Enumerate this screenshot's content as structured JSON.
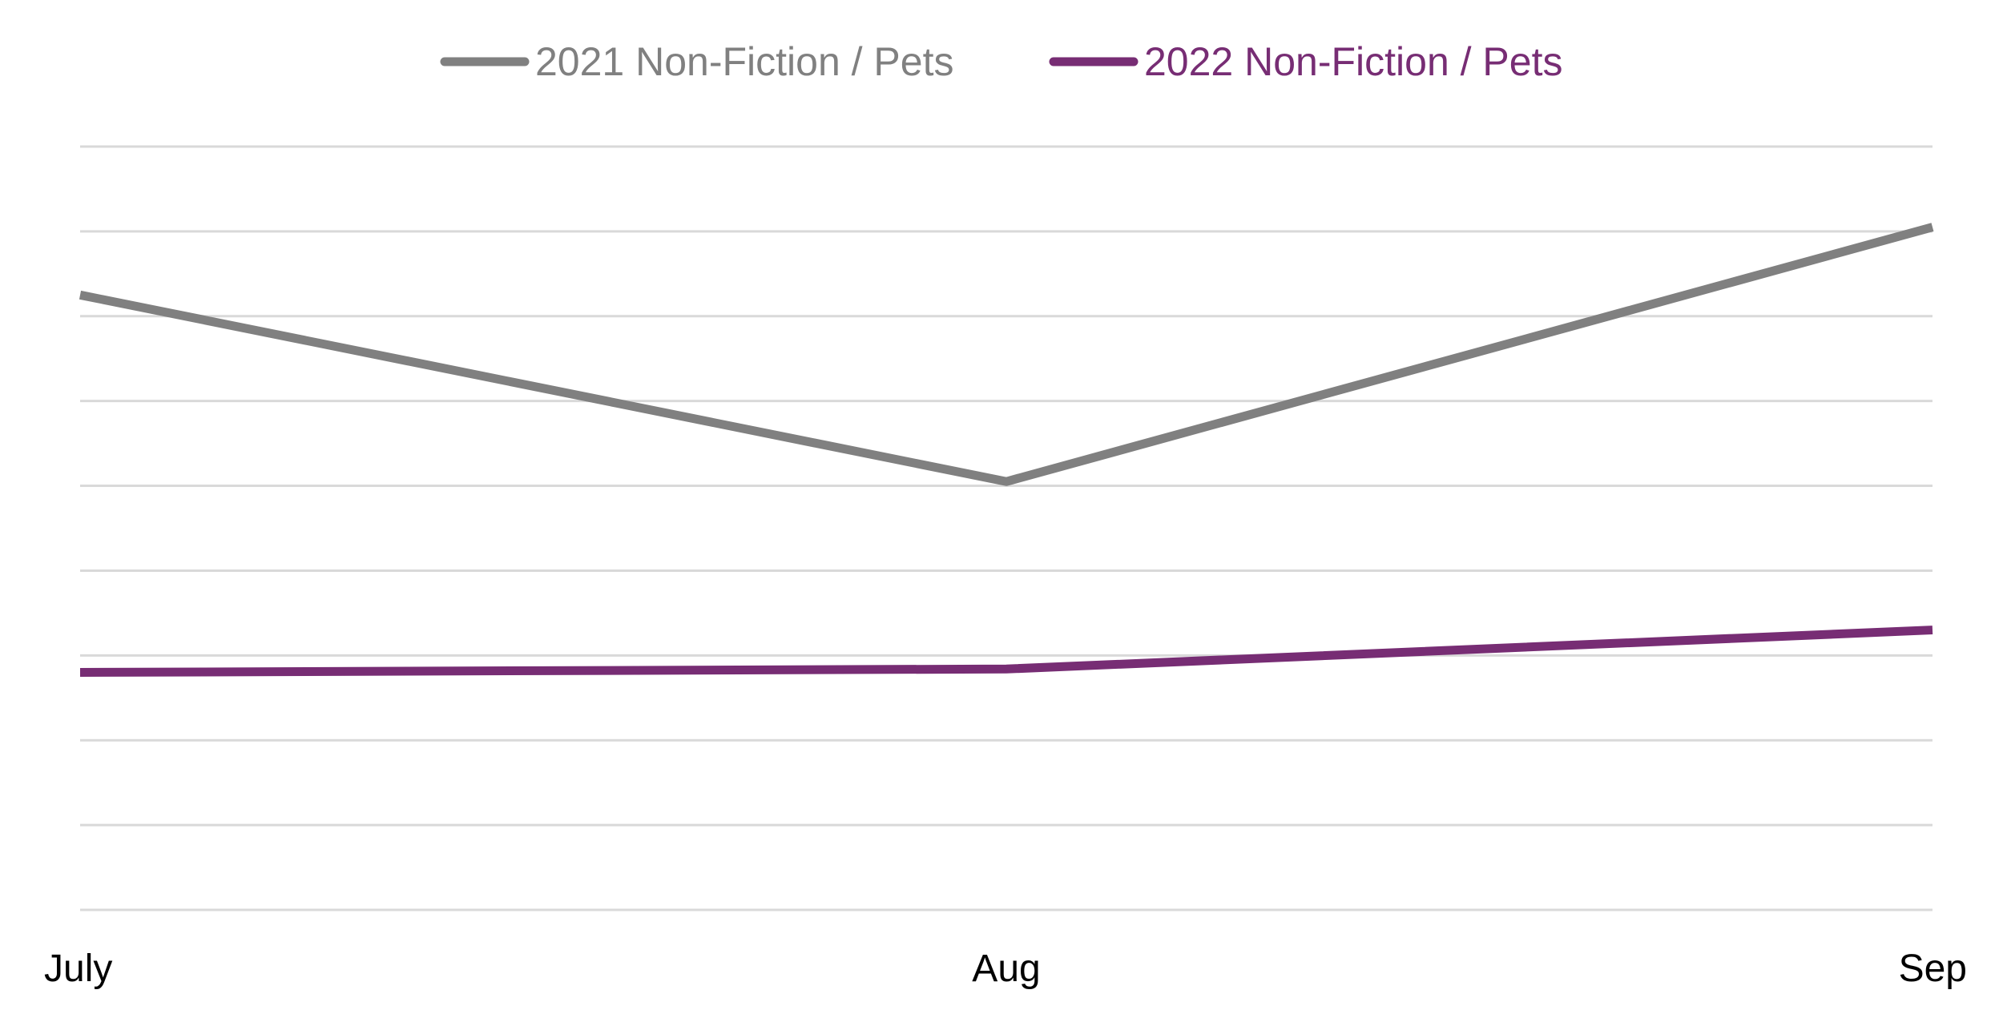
{
  "chart_data": {
    "type": "line",
    "categories": [
      "July",
      "Aug",
      "Sep"
    ],
    "series": [
      {
        "name": "2021 Non-Fiction / Pets",
        "values": [
          72.5,
          50.5,
          80.5
        ],
        "color": "#808080"
      },
      {
        "name": "2022 Non-Fiction / Pets",
        "values": [
          28.0,
          28.4,
          33.0
        ],
        "color": "#772D74"
      }
    ],
    "title": "",
    "xlabel": "",
    "ylabel": "",
    "ylim": [
      0,
      90
    ],
    "gridlines": 9,
    "grid": true,
    "legend_position": "top-center"
  }
}
